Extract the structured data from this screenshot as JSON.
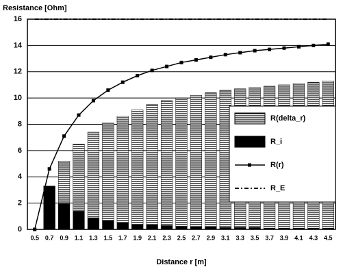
{
  "chart_data": {
    "type": "bar-line",
    "ylabel": "Resistance [Ohm]",
    "xlabel": "Distance r [m]",
    "categories": [
      "0.5",
      "0.7",
      "0.9",
      "1.1",
      "1.3",
      "1.5",
      "1.7",
      "1.9",
      "2.1",
      "2.3",
      "2.5",
      "2.7",
      "2.9",
      "3.1",
      "3.3",
      "3.5",
      "3.7",
      "3.9",
      "4.1",
      "4.3",
      "4.5"
    ],
    "series": [
      {
        "name": "R(delta_r)",
        "kind": "bar",
        "color": "#000000",
        "values": [
          0,
          3.3,
          5.2,
          6.5,
          7.4,
          8.1,
          8.6,
          9.1,
          9.5,
          9.8,
          10.0,
          10.2,
          10.4,
          10.6,
          10.7,
          10.8,
          10.9,
          11.0,
          11.1,
          11.2,
          11.3
        ]
      },
      {
        "name": "R_i",
        "kind": "bar",
        "color": "#000000",
        "values": [
          0,
          3.3,
          2.0,
          1.4,
          0.9,
          0.7,
          0.5,
          0.4,
          0.35,
          0.3,
          0.25,
          0.2,
          0.2,
          0.15,
          0.15,
          0.15,
          0.1,
          0.1,
          0.1,
          0.1,
          0.1
        ]
      },
      {
        "name": "R(r)",
        "kind": "line",
        "color": "#000000",
        "values": [
          0,
          4.6,
          7.1,
          8.7,
          9.8,
          10.6,
          11.2,
          11.7,
          12.1,
          12.4,
          12.7,
          12.9,
          13.1,
          13.3,
          13.45,
          13.6,
          13.7,
          13.8,
          13.9,
          14.0,
          14.1
        ]
      },
      {
        "name": "R_E",
        "kind": "dashed",
        "color": "#000000",
        "values": [
          16,
          16,
          16,
          16,
          16,
          16,
          16,
          16,
          16,
          16,
          16,
          16,
          16,
          16,
          16,
          16,
          16,
          16,
          16,
          16,
          16
        ]
      }
    ],
    "ylim": [
      0,
      16
    ],
    "yticks": [
      0,
      2,
      4,
      6,
      8,
      10,
      12,
      14,
      16
    ],
    "grid": true,
    "legend": "right"
  }
}
